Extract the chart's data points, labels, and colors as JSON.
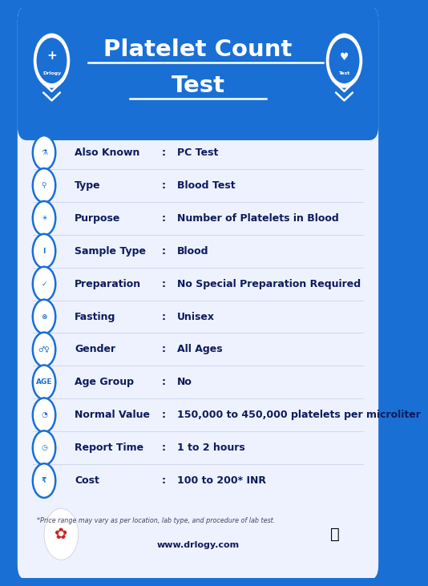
{
  "title_line1": "Platelet Count",
  "title_line2": "Test",
  "bg_outer": "#1A6FD4",
  "bg_inner": "#EEF2FF",
  "title_color": "#FFFFFF",
  "rows": [
    {
      "label": "Also Known",
      "value": "PC Test"
    },
    {
      "label": "Type",
      "value": "Blood Test"
    },
    {
      "label": "Purpose",
      "value": "Number of Platelets in Blood"
    },
    {
      "label": "Sample Type",
      "value": "Blood"
    },
    {
      "label": "Preparation",
      "value": "No Special Preparation Required"
    },
    {
      "label": "Fasting",
      "value": "Unisex"
    },
    {
      "label": "Gender",
      "value": "All Ages"
    },
    {
      "label": "Age Group",
      "value": "No"
    },
    {
      "label": "Normal Value",
      "value": "150,000 to 450,000 platelets per microliter"
    },
    {
      "label": "Report Time",
      "value": "1 to 2 hours"
    },
    {
      "label": "Cost",
      "value": "100 to 200* INR"
    }
  ],
  "footnote": "*Price range may vary as per location, lab type, and procedure of lab test.",
  "website": "www.drlogy.com",
  "label_color": "#0D1B5E",
  "value_color": "#0D1B5E",
  "icon_color": "#1A6FD4",
  "separator_color": "#D0D8EE"
}
